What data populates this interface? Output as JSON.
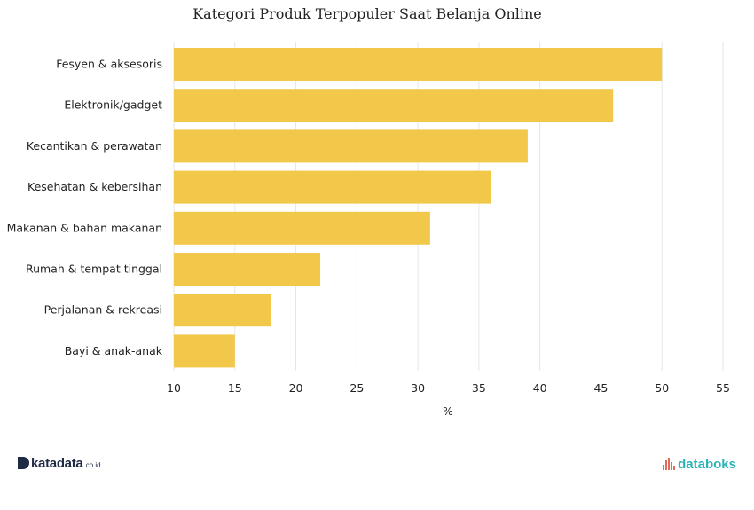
{
  "chart_data": {
    "type": "bar",
    "orientation": "horizontal",
    "title": "Kategori Produk Terpopuler Saat Belanja Online",
    "xlabel": "%",
    "ylabel": "",
    "categories": [
      "Fesyen & aksesoris",
      "Elektronik/gadget",
      "Kecantikan & perawatan",
      "Kesehatan & kebersihan",
      "Makanan & bahan makanan",
      "Rumah & tempat tinggal",
      "Perjalanan & rekreasi",
      "Bayi & anak-anak"
    ],
    "values": [
      50,
      46,
      39,
      36,
      31,
      22,
      18,
      15
    ],
    "xlim": [
      10,
      55
    ],
    "xticks": [
      10,
      15,
      20,
      25,
      30,
      35,
      40,
      45,
      50,
      55
    ],
    "grid": true,
    "bar_color": "#f2c84b"
  },
  "branding": {
    "katadata_name": "katadata",
    "katadata_suffix": ".co.id",
    "databoks_name": "databoks",
    "katadata_color": "#1f2a44",
    "databoks_color": "#2ab3b8",
    "databoks_icon_color": "#e36a5a"
  }
}
